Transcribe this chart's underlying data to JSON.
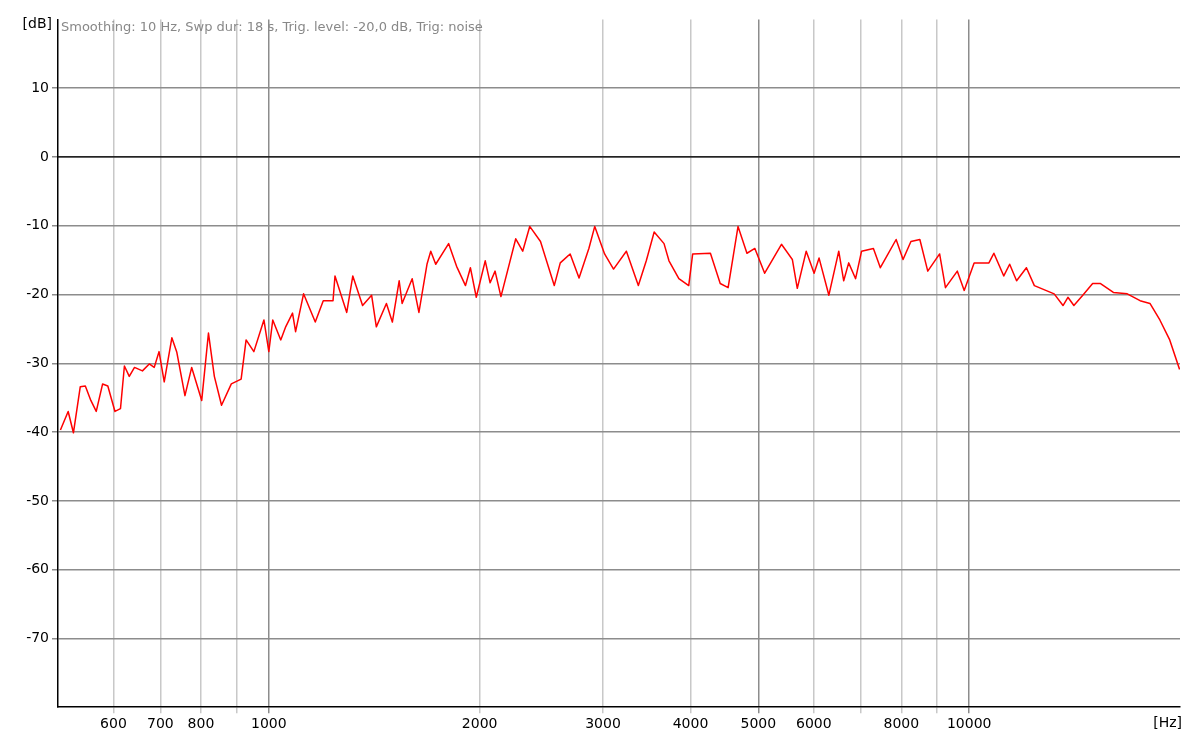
{
  "chart_data": {
    "type": "line",
    "xlabel": "[Hz]",
    "ylabel": "[dB]",
    "annotations": [
      "Smoothing: 10 Hz, Swp dur: 18 s, Trig. level: -20,0 dB, Trig: noise"
    ],
    "log": "x",
    "grid": true,
    "legend": false,
    "marker": "none",
    "line_style": "solid",
    "xlim": [
      500,
      20000
    ],
    "ylim": [
      -80,
      20
    ],
    "xticks": [
      600,
      700,
      800,
      {
        "value": 900,
        "label": null
      },
      1000,
      2000,
      3000,
      4000,
      5000,
      6000,
      {
        "value": 7000,
        "label": null
      },
      8000,
      {
        "value": 9000,
        "label": null
      },
      10000
    ],
    "yticks": [
      -70,
      -60,
      -50,
      -40,
      -30,
      -20,
      -10,
      0,
      10
    ],
    "ref_lines": [
      {
        "axis": "y",
        "value": 0,
        "label": null,
        "color": "#000000"
      }
    ],
    "series": [
      {
        "color": "#ff0000",
        "x": [
          504,
          517,
          526,
          538,
          547,
          557,
          567,
          579,
          589,
          603,
          614,
          622,
          632,
          643,
          660,
          675,
          686,
          697,
          709,
          727,
          739,
          759,
          776,
          802,
          820,
          836,
          856,
          884,
          913,
          928,
          952,
          984,
          1000,
          1013,
          1040,
          1057,
          1081,
          1092,
          1121,
          1165,
          1196,
          1235,
          1243,
          1292,
          1318,
          1361,
          1402,
          1424,
          1472,
          1501,
          1535,
          1550,
          1602,
          1638,
          1682,
          1703,
          1731,
          1806,
          1854,
          1909,
          1940,
          1978,
          2037,
          2070,
          2104,
          2145,
          2252,
          2304,
          2358,
          2443,
          2556,
          2607,
          2693,
          2773,
          2864,
          2920,
          3016,
          3106,
          3240,
          3370,
          3459,
          3550,
          3667,
          3727,
          3850,
          3977,
          4029,
          4271,
          4411,
          4527,
          4677,
          4816,
          4943,
          5105,
          5395,
          5591,
          5683,
          5852,
          6006,
          6105,
          6305,
          6513,
          6620,
          6729,
          6884,
          7020,
          7299,
          7467,
          7865,
          8046,
          8257,
          8503,
          8727,
          9074,
          9250,
          9618,
          9838,
          10164,
          10671,
          10846,
          11205,
          11424,
          11687,
          12071,
          12390,
          13224,
          13614,
          13836,
          14109,
          14528,
          15007,
          15402,
          16066,
          16816,
          17540,
          18119,
          18718,
          19336,
          19973
        ],
        "values": [
          -39.7,
          -37.0,
          -40.1,
          -33.4,
          -33.3,
          -35.4,
          -37.0,
          -33.0,
          -33.3,
          -37.0,
          -36.6,
          -30.4,
          -31.9,
          -30.6,
          -31.1,
          -30.1,
          -30.6,
          -28.3,
          -32.7,
          -26.3,
          -28.4,
          -34.7,
          -30.6,
          -35.4,
          -25.6,
          -31.9,
          -36.1,
          -33.0,
          -32.3,
          -26.6,
          -28.3,
          -23.7,
          -28.3,
          -23.7,
          -26.6,
          -24.7,
          -22.7,
          -25.4,
          -19.9,
          -24.0,
          -20.9,
          -20.9,
          -17.3,
          -22.6,
          -17.3,
          -21.6,
          -20.1,
          -24.7,
          -21.3,
          -24.0,
          -18.0,
          -21.3,
          -17.7,
          -22.6,
          -15.6,
          -13.7,
          -15.6,
          -12.6,
          -15.9,
          -18.7,
          -16.1,
          -20.4,
          -15.1,
          -18.3,
          -16.6,
          -20.3,
          -11.9,
          -13.7,
          -10.1,
          -12.3,
          -18.7,
          -15.4,
          -14.1,
          -17.6,
          -13.3,
          -10.1,
          -14.1,
          -16.3,
          -13.7,
          -18.7,
          -15.1,
          -10.9,
          -12.6,
          -15.1,
          -17.7,
          -18.7,
          -14.1,
          -14.0,
          -18.4,
          -19.0,
          -10.1,
          -14.0,
          -13.3,
          -16.9,
          -12.7,
          -14.9,
          -19.1,
          -13.7,
          -16.9,
          -14.7,
          -20.1,
          -13.7,
          -18.0,
          -15.4,
          -17.7,
          -13.7,
          -13.3,
          -16.1,
          -12.0,
          -14.9,
          -12.3,
          -12.0,
          -16.6,
          -14.1,
          -19.0,
          -16.6,
          -19.4,
          -15.4,
          -15.4,
          -14.0,
          -17.3,
          -15.6,
          -18.0,
          -16.1,
          -18.7,
          -19.9,
          -21.6,
          -20.4,
          -21.6,
          -20.1,
          -18.4,
          -18.4,
          -19.7,
          -19.9,
          -20.9,
          -21.3,
          -23.7,
          -26.6,
          -30.9
        ]
      }
    ]
  }
}
